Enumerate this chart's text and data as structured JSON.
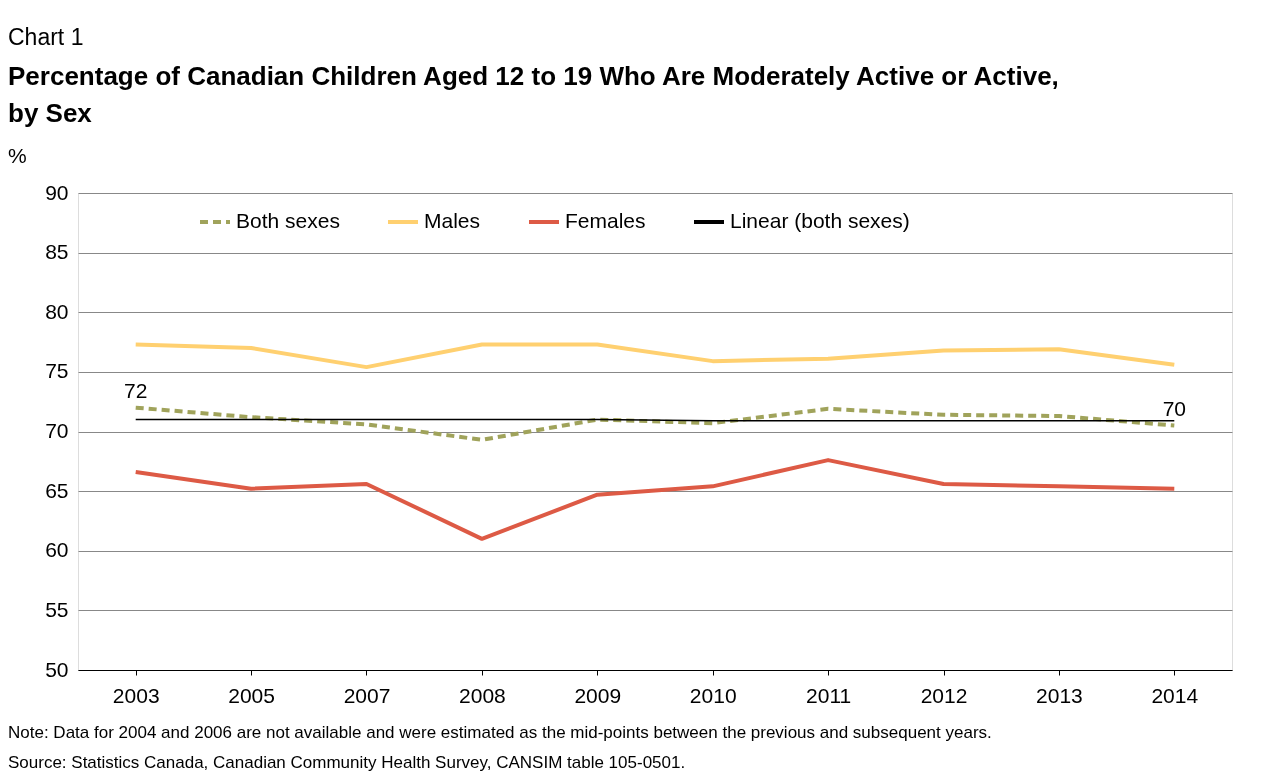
{
  "chart_data": {
    "type": "line",
    "title": "Percentage of Canadian Children Aged 12 to 19 Who Are Moderately Active or Active,\nby Sex",
    "subtitle": "Chart 1",
    "ylabel": "%",
    "categories": [
      "2003",
      "2005",
      "2007",
      "2008",
      "2009",
      "2010",
      "2011",
      "2012",
      "2013",
      "2014"
    ],
    "series": [
      {
        "name": "Both sexes",
        "color": "#a0a35b",
        "line_style": "dashed",
        "values": [
          72.0,
          71.2,
          70.6,
          69.3,
          71.0,
          70.7,
          71.9,
          71.4,
          71.3,
          70.5
        ],
        "value_labels": [
          "72",
          null,
          null,
          null,
          null,
          null,
          null,
          null,
          null,
          "70"
        ]
      },
      {
        "name": "Males",
        "color": "#ffd070",
        "line_style": "solid",
        "values": [
          77.3,
          77.0,
          75.4,
          77.3,
          77.3,
          75.9,
          76.1,
          76.8,
          76.9,
          75.6
        ]
      },
      {
        "name": "Females",
        "color": "#dd5a45",
        "line_style": "solid",
        "values": [
          66.6,
          65.2,
          65.6,
          61.0,
          64.7,
          65.4,
          67.6,
          65.6,
          65.4,
          65.2
        ]
      },
      {
        "name": "Linear (both sexes)",
        "type": "line",
        "color": "#000000",
        "line_style": "solid",
        "values": [
          71.0,
          71.0,
          71.0,
          71.0,
          71.0,
          70.9,
          70.9,
          70.9,
          70.9,
          70.9
        ]
      }
    ],
    "ylim": [
      50,
      90
    ],
    "yticks": [
      50,
      55,
      60,
      65,
      70,
      75,
      80,
      85,
      90
    ],
    "grid": "y",
    "legend": "top",
    "marker": "none",
    "annotations": [
      "Note: Data for 2004 and 2006 are not available and were estimated as the mid-points between the previous and subsequent years.",
      "Source: Statistics Canada, Canadian Community Health Survey, CANSIM table 105-0501."
    ]
  }
}
